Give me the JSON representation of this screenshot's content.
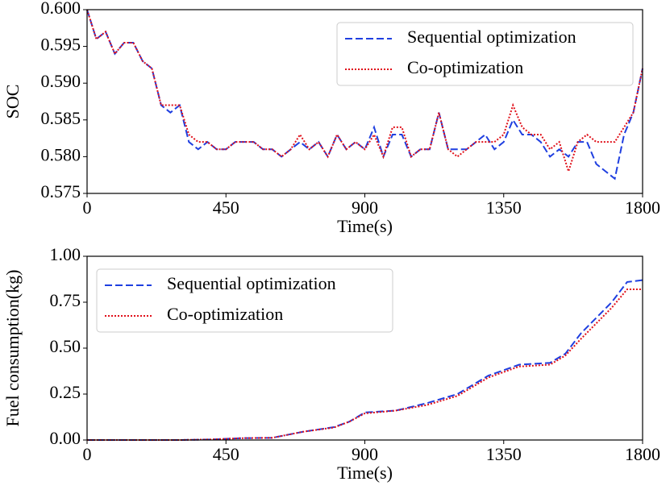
{
  "chart_data": [
    {
      "type": "line",
      "ylabel": "SOC",
      "xlabel": "Time(s)",
      "legend": "upper right",
      "xlim": [
        0,
        1800
      ],
      "xticks": [
        0,
        450,
        900,
        1350,
        1800
      ],
      "ylim": [
        0.575,
        0.6
      ],
      "yticks": [
        0.575,
        {
          "value": 0.58,
          "label": "0.580"
        },
        0.585,
        {
          "value": 0.59,
          "label": "0.590"
        },
        0.595,
        {
          "value": 0.6,
          "label": "0.600"
        }
      ],
      "x": [
        0,
        30,
        60,
        90,
        120,
        150,
        180,
        210,
        240,
        270,
        300,
        330,
        360,
        390,
        420,
        450,
        480,
        510,
        540,
        570,
        600,
        630,
        660,
        690,
        720,
        750,
        780,
        810,
        840,
        870,
        900,
        930,
        960,
        990,
        1020,
        1050,
        1080,
        1110,
        1140,
        1170,
        1200,
        1230,
        1260,
        1290,
        1320,
        1350,
        1380,
        1410,
        1440,
        1470,
        1500,
        1530,
        1560,
        1590,
        1620,
        1650,
        1680,
        1710,
        1740,
        1770,
        1800
      ],
      "series": [
        {
          "name": "Sequential optimization",
          "color": "#1f3fe0",
          "style": "dashed",
          "values": [
            0.6,
            0.596,
            0.597,
            0.594,
            0.5955,
            0.5955,
            0.593,
            0.592,
            0.587,
            0.586,
            0.587,
            0.582,
            0.581,
            0.582,
            0.581,
            0.581,
            0.582,
            0.582,
            0.582,
            0.581,
            0.581,
            0.58,
            0.581,
            0.582,
            0.581,
            0.582,
            0.58,
            0.583,
            0.581,
            0.582,
            0.581,
            0.584,
            0.58,
            0.583,
            0.583,
            0.58,
            0.581,
            0.581,
            0.586,
            0.581,
            0.581,
            0.581,
            0.582,
            0.583,
            0.581,
            0.582,
            0.585,
            0.583,
            0.583,
            0.582,
            0.58,
            0.581,
            0.58,
            0.582,
            0.582,
            0.579,
            0.578,
            0.577,
            0.583,
            0.586,
            0.592
          ]
        },
        {
          "name": "Co-optimization",
          "color": "#e0101a",
          "style": "dotted",
          "values": [
            0.6,
            0.596,
            0.597,
            0.594,
            0.5955,
            0.5955,
            0.593,
            0.592,
            0.587,
            0.587,
            0.587,
            0.583,
            0.582,
            0.582,
            0.581,
            0.581,
            0.582,
            0.582,
            0.582,
            0.581,
            0.581,
            0.58,
            0.581,
            0.583,
            0.581,
            0.582,
            0.58,
            0.583,
            0.581,
            0.582,
            0.581,
            0.583,
            0.58,
            0.584,
            0.584,
            0.58,
            0.581,
            0.581,
            0.586,
            0.581,
            0.58,
            0.581,
            0.582,
            0.582,
            0.582,
            0.583,
            0.587,
            0.584,
            0.583,
            0.583,
            0.581,
            0.582,
            0.578,
            0.582,
            0.583,
            0.582,
            0.582,
            0.582,
            0.584,
            0.586,
            0.592
          ]
        }
      ]
    },
    {
      "type": "line",
      "ylabel": "Fuel consumption(kg)",
      "xlabel": "Time(s)",
      "legend": "upper left",
      "xlim": [
        0,
        1800
      ],
      "xticks": [
        0,
        450,
        900,
        1350,
        1800
      ],
      "ylim": [
        0,
        1
      ],
      "yticks": [
        {
          "value": 0,
          "label": "0.00"
        },
        0.25,
        {
          "value": 0.5,
          "label": "0.50"
        },
        0.75,
        {
          "value": 1,
          "label": "1.00"
        }
      ],
      "x": [
        0,
        100,
        200,
        300,
        400,
        500,
        600,
        700,
        800,
        850,
        900,
        1000,
        1100,
        1200,
        1300,
        1400,
        1500,
        1550,
        1600,
        1700,
        1750,
        1800
      ],
      "series": [
        {
          "name": "Sequential optimization",
          "color": "#1f3fe0",
          "style": "dashed",
          "values": [
            0,
            0,
            0,
            0,
            0.003,
            0.01,
            0.012,
            0.045,
            0.07,
            0.1,
            0.15,
            0.16,
            0.2,
            0.25,
            0.35,
            0.41,
            0.42,
            0.47,
            0.58,
            0.75,
            0.86,
            0.87
          ]
        },
        {
          "name": "Co-optimization",
          "color": "#e0101a",
          "style": "dotted",
          "values": [
            0,
            0,
            0,
            0,
            0.003,
            0.01,
            0.012,
            0.045,
            0.068,
            0.1,
            0.145,
            0.16,
            0.19,
            0.24,
            0.34,
            0.4,
            0.41,
            0.46,
            0.55,
            0.72,
            0.82,
            0.82
          ]
        }
      ]
    }
  ]
}
